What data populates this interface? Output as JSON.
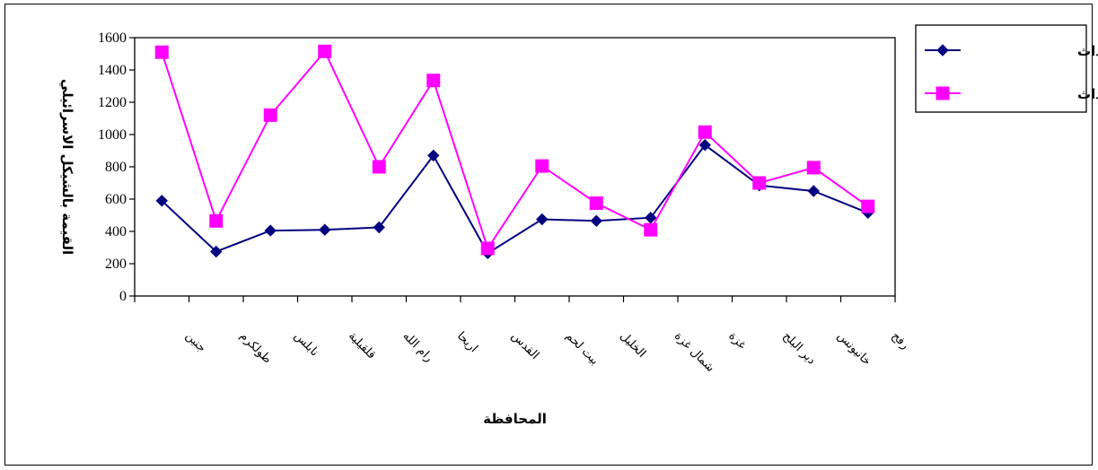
{
  "chart_data": {
    "type": "line",
    "xlabel": "المحافظة",
    "ylabel": "القيمة بالشيكل الاسرائيلي",
    "ylim": [
      0,
      1600
    ],
    "yticks": [
      "0",
      "200",
      "400",
      "600",
      "800",
      "1000",
      "1200",
      "1400",
      "1600"
    ],
    "categories": [
      "جنين",
      "طولكرم",
      "نابلس",
      "قلقيلية",
      "رام الله",
      "اريحا",
      "القدس",
      "بيت لحم",
      "الخليل",
      "شمال غزة",
      "غزة",
      "دير البلح",
      "خانيونس",
      "رفح"
    ],
    "series": [
      {
        "name": "قبل الاحداث",
        "color": "#000080",
        "marker": "diamond",
        "values": [
          590,
          275,
          405,
          410,
          425,
          870,
          265,
          475,
          465,
          485,
          935,
          685,
          650,
          515
        ]
      },
      {
        "name": "بعد الاحداث",
        "color": "#ff00ff",
        "marker": "square",
        "values": [
          1510,
          465,
          1120,
          1515,
          800,
          1335,
          295,
          805,
          575,
          410,
          1015,
          700,
          795,
          555
        ]
      }
    ],
    "legend_position": "top-right",
    "grid": false
  }
}
